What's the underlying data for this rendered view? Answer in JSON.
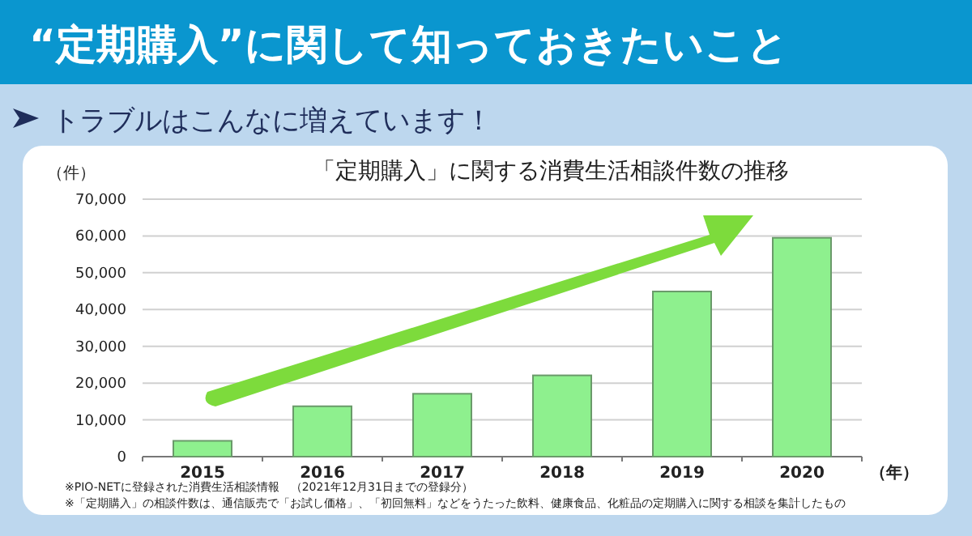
{
  "chart_data": {
    "type": "bar",
    "title": "“定期購入”に関して知っておきたいこと",
    "subtitle": "「定期購入」に関する消費生活相談件数の推移",
    "annotations": [
      "トラブルはこんなに増えています！",
      "※PIO-NETに登録された消費生活相談情報　（2021年12月31日までの登録分）",
      "※「定期購入」の相談件数は、通信販売で「お試し価格」、「初回無料」などをうたった飲料、健康食品、化粧品の定期購入に関する相談を集計したもの"
    ],
    "ylabel": "（件）",
    "xlabel": "（年）",
    "categories": [
      "2015",
      "2016",
      "2017",
      "2018",
      "2019",
      "2020"
    ],
    "values": [
      4300,
      13700,
      17100,
      22100,
      44900,
      59500
    ],
    "color": "#8ef08e",
    "ylim": [
      0,
      70000
    ],
    "yticks": [
      0,
      {
        "value": 10000,
        "label": "10,000"
      },
      {
        "value": 20000,
        "label": "20,000"
      },
      {
        "value": 30000,
        "label": "30,000"
      },
      {
        "value": 40000,
        "label": "40,000"
      },
      {
        "value": 50000,
        "label": "50,000"
      },
      {
        "value": 60000,
        "label": "60,000"
      },
      {
        "value": 70000,
        "label": "70,000"
      }
    ],
    "grid": "y"
  }
}
